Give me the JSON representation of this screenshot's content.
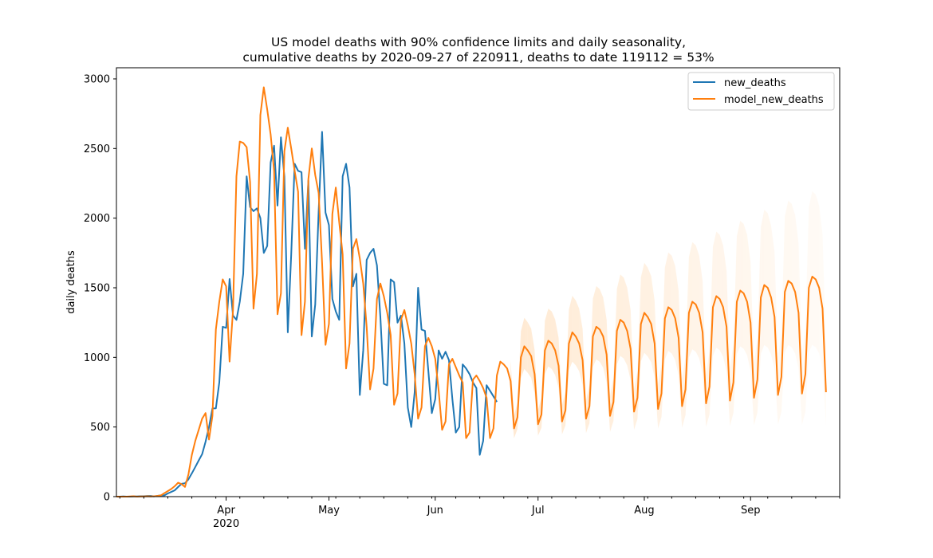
{
  "chart_data": {
    "type": "line",
    "title": "US model deaths with 90% confidence limits and daily seasonality,",
    "subtitle": "cumulative deaths by 2020-09-27 of 220911, deaths to date 119112 = 53%",
    "xlabel": "",
    "ylabel": "daily deaths",
    "x_start": "2020-02-29",
    "x_end": "2020-09-27",
    "ylim": [
      0,
      3080
    ],
    "yticks": [
      0,
      500,
      1000,
      1500,
      2000,
      2500,
      3000
    ],
    "xticks": [
      {
        "label": "Apr",
        "sublabel": "2020",
        "date": "2020-04-01"
      },
      {
        "label": "May",
        "sublabel": "",
        "date": "2020-05-01"
      },
      {
        "label": "Jun",
        "sublabel": "",
        "date": "2020-06-01"
      },
      {
        "label": "Jul",
        "sublabel": "",
        "date": "2020-07-01"
      },
      {
        "label": "Aug",
        "sublabel": "",
        "date": "2020-08-01"
      },
      {
        "label": "Sep",
        "sublabel": "",
        "date": "2020-09-01"
      }
    ],
    "grid": false,
    "legend_position": "top-right",
    "series": [
      {
        "name": "new_deaths",
        "color": "#1f77b4",
        "start_date": "2020-02-29",
        "values": [
          0,
          0,
          2,
          0,
          0,
          2,
          2,
          3,
          3,
          5,
          5,
          2,
          6,
          10,
          9,
          23,
          34,
          45,
          69,
          92,
          96,
          124,
          167,
          213,
          260,
          305,
          395,
          500,
          633,
          634,
          820,
          1220,
          1212,
          1563,
          1300,
          1269,
          1400,
          1600,
          2300,
          2080,
          2050,
          2070,
          2000,
          1750,
          1800,
          2400,
          2520,
          2090,
          2580,
          2300,
          1180,
          1740,
          2390,
          2340,
          2330,
          1780,
          2270,
          1150,
          1380,
          2050,
          2620,
          2040,
          1950,
          1420,
          1330,
          1270,
          2300,
          2390,
          2220,
          1510,
          1600,
          730,
          1050,
          1700,
          1750,
          1780,
          1660,
          1290,
          810,
          800,
          1560,
          1540,
          1250,
          1300,
          1100,
          640,
          500,
          750,
          1500,
          1200,
          1190,
          900,
          600,
          700,
          1050,
          990,
          1040,
          980,
          700,
          460,
          500,
          950,
          920,
          880,
          820,
          780,
          300,
          400,
          800,
          760,
          720,
          680
        ],
        "values_end_date": "2020-06-22"
      },
      {
        "name": "model_new_deaths",
        "color": "#ff7f0e",
        "start_date": "2020-02-29",
        "values": [
          0,
          0,
          0,
          0,
          2,
          3,
          0,
          1,
          2,
          3,
          2,
          3,
          5,
          10,
          25,
          40,
          55,
          75,
          100,
          90,
          70,
          160,
          300,
          400,
          480,
          560,
          600,
          410,
          580,
          1200,
          1400,
          1560,
          1510,
          970,
          1340,
          2300,
          2550,
          2540,
          2510,
          2260,
          1350,
          1600,
          2740,
          2940,
          2780,
          2600,
          2340,
          1310,
          1460,
          2480,
          2650,
          2500,
          2340,
          2190,
          1160,
          1400,
          2280,
          2500,
          2310,
          2180,
          1680,
          1090,
          1240,
          2030,
          2220,
          1970,
          1740,
          920,
          1100,
          1780,
          1850,
          1710,
          1530,
          1220,
          770,
          920,
          1420,
          1530,
          1440,
          1320,
          1160,
          660,
          740,
          1270,
          1340,
          1230,
          1100,
          880,
          560,
          640,
          1080,
          1140,
          1080,
          990,
          760,
          480,
          540,
          950,
          990,
          930,
          870,
          820,
          420,
          460,
          840,
          870,
          830,
          780,
          710,
          420,
          490,
          870,
          970,
          950,
          920,
          830,
          490,
          570,
          1000,
          1080,
          1050,
          1010,
          880,
          520,
          590,
          1050,
          1120,
          1100,
          1050,
          940,
          540,
          620,
          1100,
          1180,
          1150,
          1100,
          980,
          560,
          650,
          1150,
          1220,
          1200,
          1150,
          1020,
          580,
          680,
          1190,
          1270,
          1250,
          1190,
          1060,
          610,
          710,
          1240,
          1320,
          1290,
          1240,
          1100,
          630,
          740,
          1280,
          1360,
          1340,
          1280,
          1140,
          650,
          770,
          1320,
          1400,
          1380,
          1320,
          1180,
          670,
          790,
          1360,
          1440,
          1420,
          1360,
          1220,
          690,
          820,
          1400,
          1480,
          1460,
          1400,
          1250,
          710,
          840,
          1430,
          1520,
          1500,
          1430,
          1290,
          730,
          860,
          1470,
          1550,
          1530,
          1470,
          1320,
          740,
          880,
          1500,
          1580,
          1560,
          1500,
          1350,
          750
        ]
      }
    ],
    "confidence_band": {
      "name": "90% confidence limits",
      "color": "#ffd9b0",
      "start_date": "2020-06-23"
    }
  }
}
